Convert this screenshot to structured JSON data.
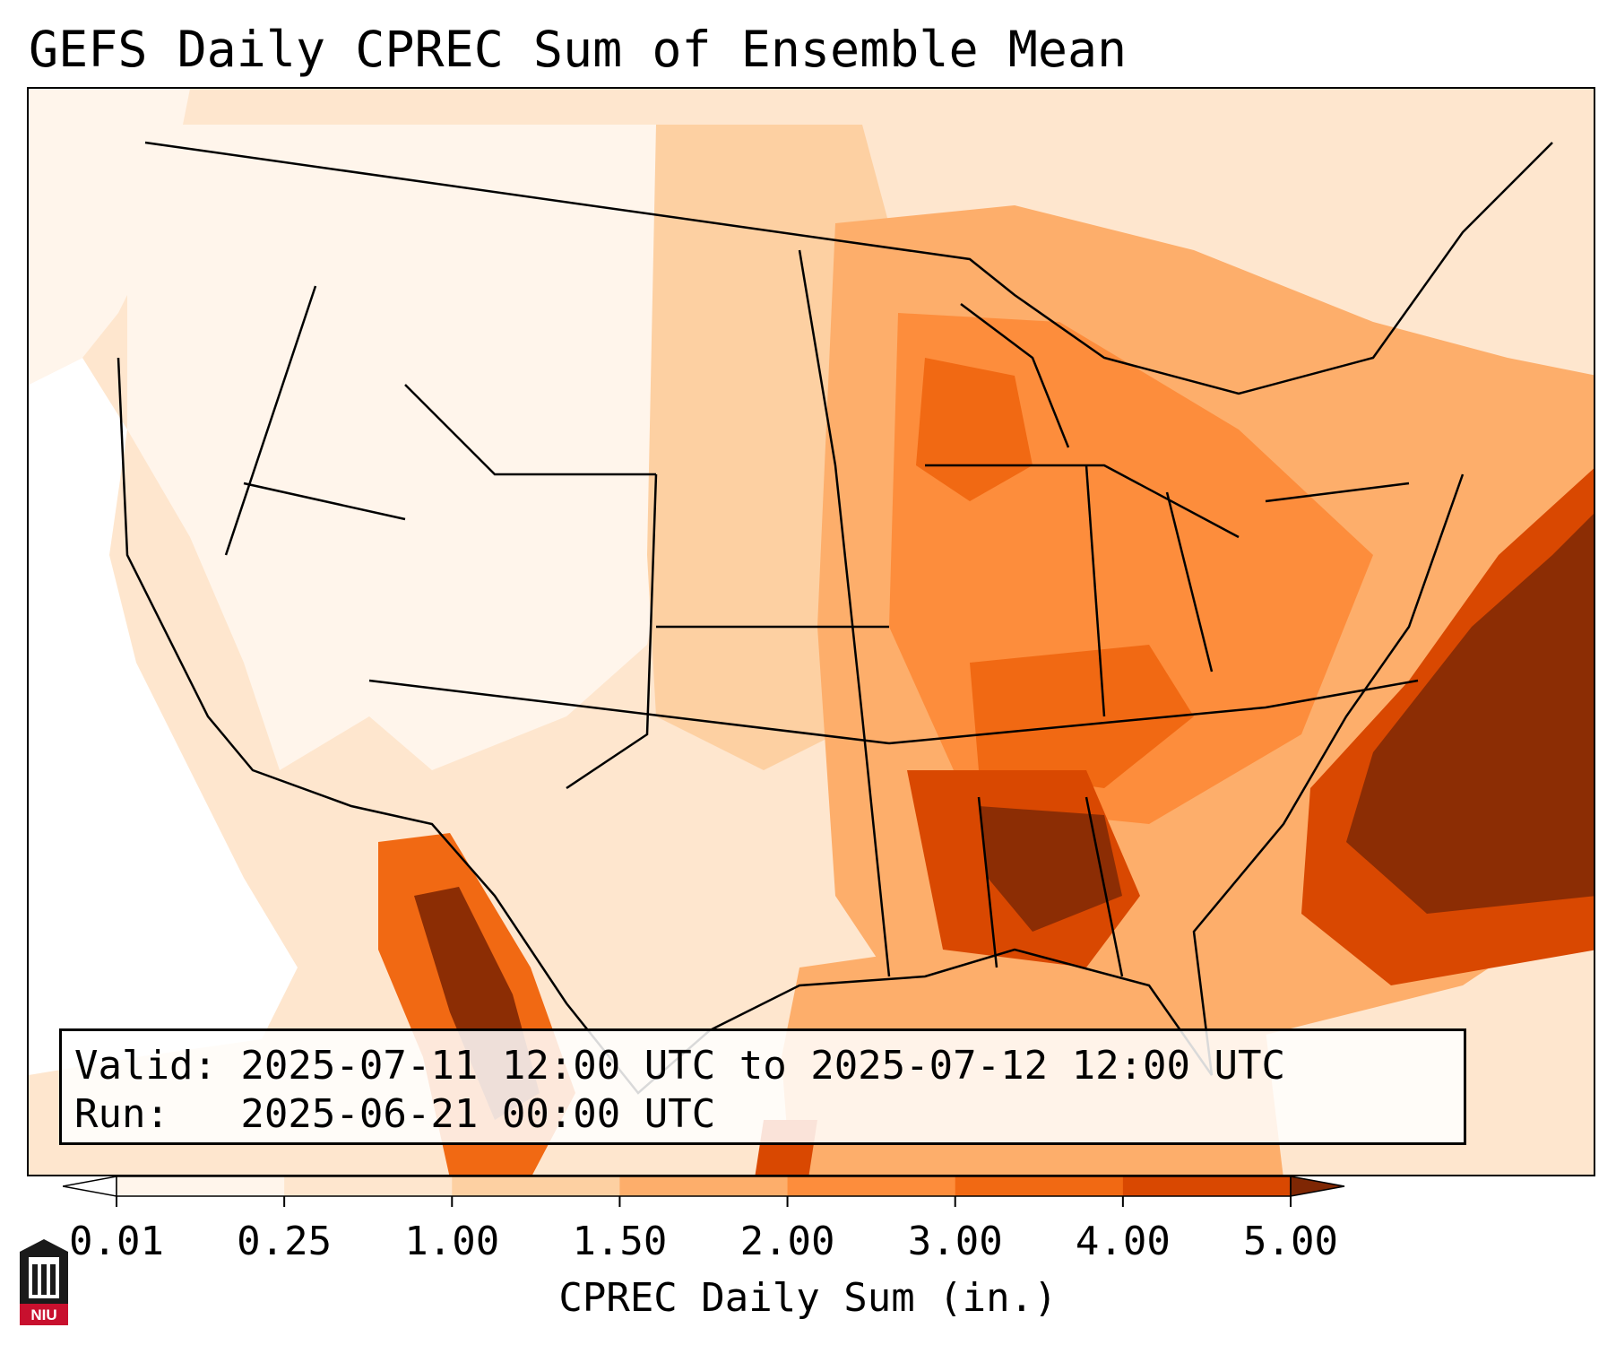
{
  "title": "GEFS Daily CPREC Sum of Ensemble Mean",
  "info": {
    "valid": "Valid: 2025-07-11 12:00 UTC to 2025-07-12 12:00 UTC",
    "run": "Run:   2025-06-21 00:00 UTC"
  },
  "colorbar": {
    "label": "CPREC Daily Sum (in.)",
    "ticks": [
      "0.01",
      "0.25",
      "1.00",
      "1.50",
      "2.00",
      "3.00",
      "4.00",
      "5.00"
    ],
    "colors": [
      "#fff5eb",
      "#fee6ce",
      "#fdd0a2",
      "#fdae6b",
      "#fd8d3c",
      "#f16913",
      "#d94801",
      "#8c2d04"
    ],
    "under_color": "#ffffff",
    "over_color": "#7f2704"
  },
  "logo": {
    "text": "NIU",
    "icon": "university-logo-icon"
  }
}
